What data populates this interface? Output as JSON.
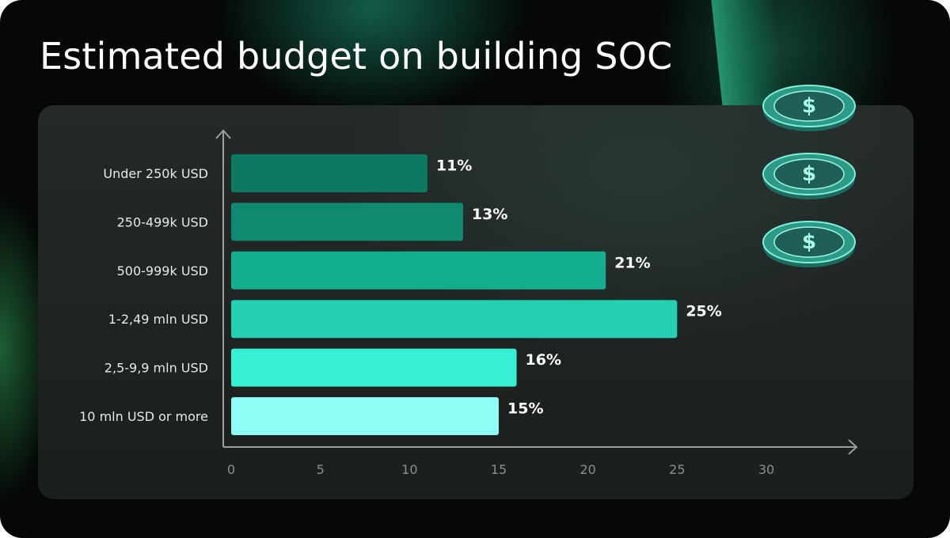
{
  "title": "Estimated budget on building SOC",
  "chart_data": {
    "type": "bar",
    "orientation": "horizontal",
    "title": "Estimated budget on building SOC",
    "categories": [
      "Under 250k USD",
      "250-499k USD",
      "500-999k USD",
      "1-2,49 mln USD",
      "2,5-9,9 mln USD",
      "10 mln USD or more"
    ],
    "values": [
      11,
      13,
      21,
      25,
      16,
      15
    ],
    "value_labels": [
      "11%",
      "13%",
      "21%",
      "25%",
      "16%",
      "15%"
    ],
    "bar_colors": [
      "#0c7a62",
      "#0f8a70",
      "#13ae8d",
      "#23d1b2",
      "#35f0d2",
      "#8ffcf5"
    ],
    "xticks": [
      "0",
      "5",
      "10",
      "15",
      "20",
      "25",
      "30"
    ],
    "xlim": [
      0,
      30
    ],
    "grid": false,
    "legend": false
  },
  "decorations": {
    "coin_icon": "dollar-coin-icon",
    "coin_count": 3,
    "coin_color": "#5fe0c9"
  }
}
